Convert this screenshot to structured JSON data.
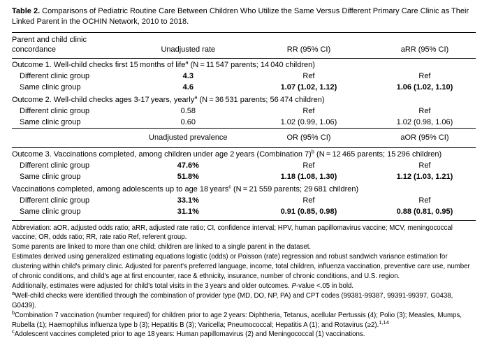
{
  "title": {
    "label": "Table 2.",
    "text": "Comparisons of Pediatric Routine Care Between Children Who Utilize the Same Versus Different Primary Care Clinic as Their Linked Parent in the OCHIN Network, 2010 to 2018."
  },
  "table": {
    "top_header": {
      "stub": "Parent and child clinic concordance",
      "rate": "Unadjusted rate",
      "rr": "RR (95% CI)",
      "arr": "aRR (95% CI)"
    },
    "mid_header": {
      "prevalence": "Unadjusted prevalence",
      "or": "OR (95% CI)",
      "aor": "aOR (95% CI)"
    },
    "sections": [
      {
        "heading_pre": "Outcome 1. Well-child checks first 15 months of life",
        "heading_sup": "a",
        "heading_post": " (N = 11 547 parents; 14 040 children)",
        "rows": [
          {
            "label": "Different clinic group",
            "value": "4.3",
            "ratio": "Ref",
            "adjusted": "Ref"
          },
          {
            "label": "Same clinic group",
            "value": "4.6",
            "ratio": "1.07 (1.02, 1.12)",
            "adjusted": "1.06 (1.02, 1.10)"
          }
        ]
      },
      {
        "heading_pre": "Outcome 2. Well-child checks ages 3-17 years, yearly",
        "heading_sup": "a",
        "heading_post": " (N = 36 531 parents; 56 474 children)",
        "rows": [
          {
            "label": "Different clinic group",
            "value": "0.58",
            "ratio": "Ref",
            "adjusted": "Ref"
          },
          {
            "label": "Same clinic group",
            "value": "0.60",
            "ratio": "1.02 (0.99, 1.06)",
            "adjusted": "1.02 (0.98, 1.06)"
          }
        ]
      },
      {
        "heading_pre": "Outcome 3. Vaccinations completed, among children under age 2 years (Combination 7)",
        "heading_sup": "b",
        "heading_post": " (N = 12 465 parents; 15 296 children)",
        "rows": [
          {
            "label": "Different clinic group",
            "value": "47.6%",
            "ratio": "Ref",
            "adjusted": "Ref"
          },
          {
            "label": "Same clinic group",
            "value": "51.8%",
            "ratio": "1.18 (1.08, 1.30)",
            "adjusted": "1.12 (1.03, 1.21)"
          }
        ]
      },
      {
        "heading_pre": "Vaccinations completed, among adolescents up to age 18 years",
        "heading_sup": "c",
        "heading_post": " (N = 21 559 parents; 29 681 children)",
        "rows": [
          {
            "label": "Different clinic group",
            "value": "33.1%",
            "ratio": "Ref",
            "adjusted": "Ref"
          },
          {
            "label": "Same clinic group",
            "value": "31.1%",
            "ratio": "0.91 (0.85, 0.98)",
            "adjusted": "0.88 (0.81, 0.95)"
          }
        ]
      }
    ]
  },
  "footnotes": {
    "abbreviation": "Abbreviation: aOR, adjusted odds ratio; aRR, adjusted rate ratio; CI, confidence interval; HPV, human papillomavirus vaccine; MCV, meningococcal vaccine; OR, odds ratio; RR, rate ratio Ref, referent group.",
    "parents_note": "Some parents are linked to more than one child; children are linked to a single parent in the dataset.",
    "estimates": "Estimates derived using generalized estimating equations logistic (odds) or Poisson (rate) regression and robust sandwich variance estimation for clustering within child's primary clinic. Adjusted for parent's preferred language, income, total children, influenza vaccination, preventive care use, number of chronic conditions, and child's age at first encounter, race & ethnicity, insurance, number of chronic conditions, and U.S. region.",
    "additionally": "Additionally, estimates were adjusted for child's total visits in the 3 years and older outcomes. ",
    "pvalue_p": "P",
    "pvalue_rest": "-value <.05 in bold.",
    "a_sup": "a",
    "a_text": "Well-child checks were identified through the combination of provider type (MD, DO, NP, PA) and CPT codes (99381-99387, 99391-99397, G0438, G0439).",
    "b_sup": "b",
    "b_text": "Combination 7 vaccination (number required) for children prior to age 2 years: Diphtheria, Tetanus, acellular Pertussis (4); Polio (3); Measles, Mumps, Rubella (1); Haemophilus influenza type b (3); Hepatitis B (3); Varicella; Pneumococcal; Hepatitis A (1); and Rotavirus (≥2).",
    "b_ref": "1,14",
    "c_sup": "c",
    "c_text": "Adolescent vaccines completed prior to age 18 years: Human papillomavirus (2) and Meningococcal (1) vaccinations."
  }
}
